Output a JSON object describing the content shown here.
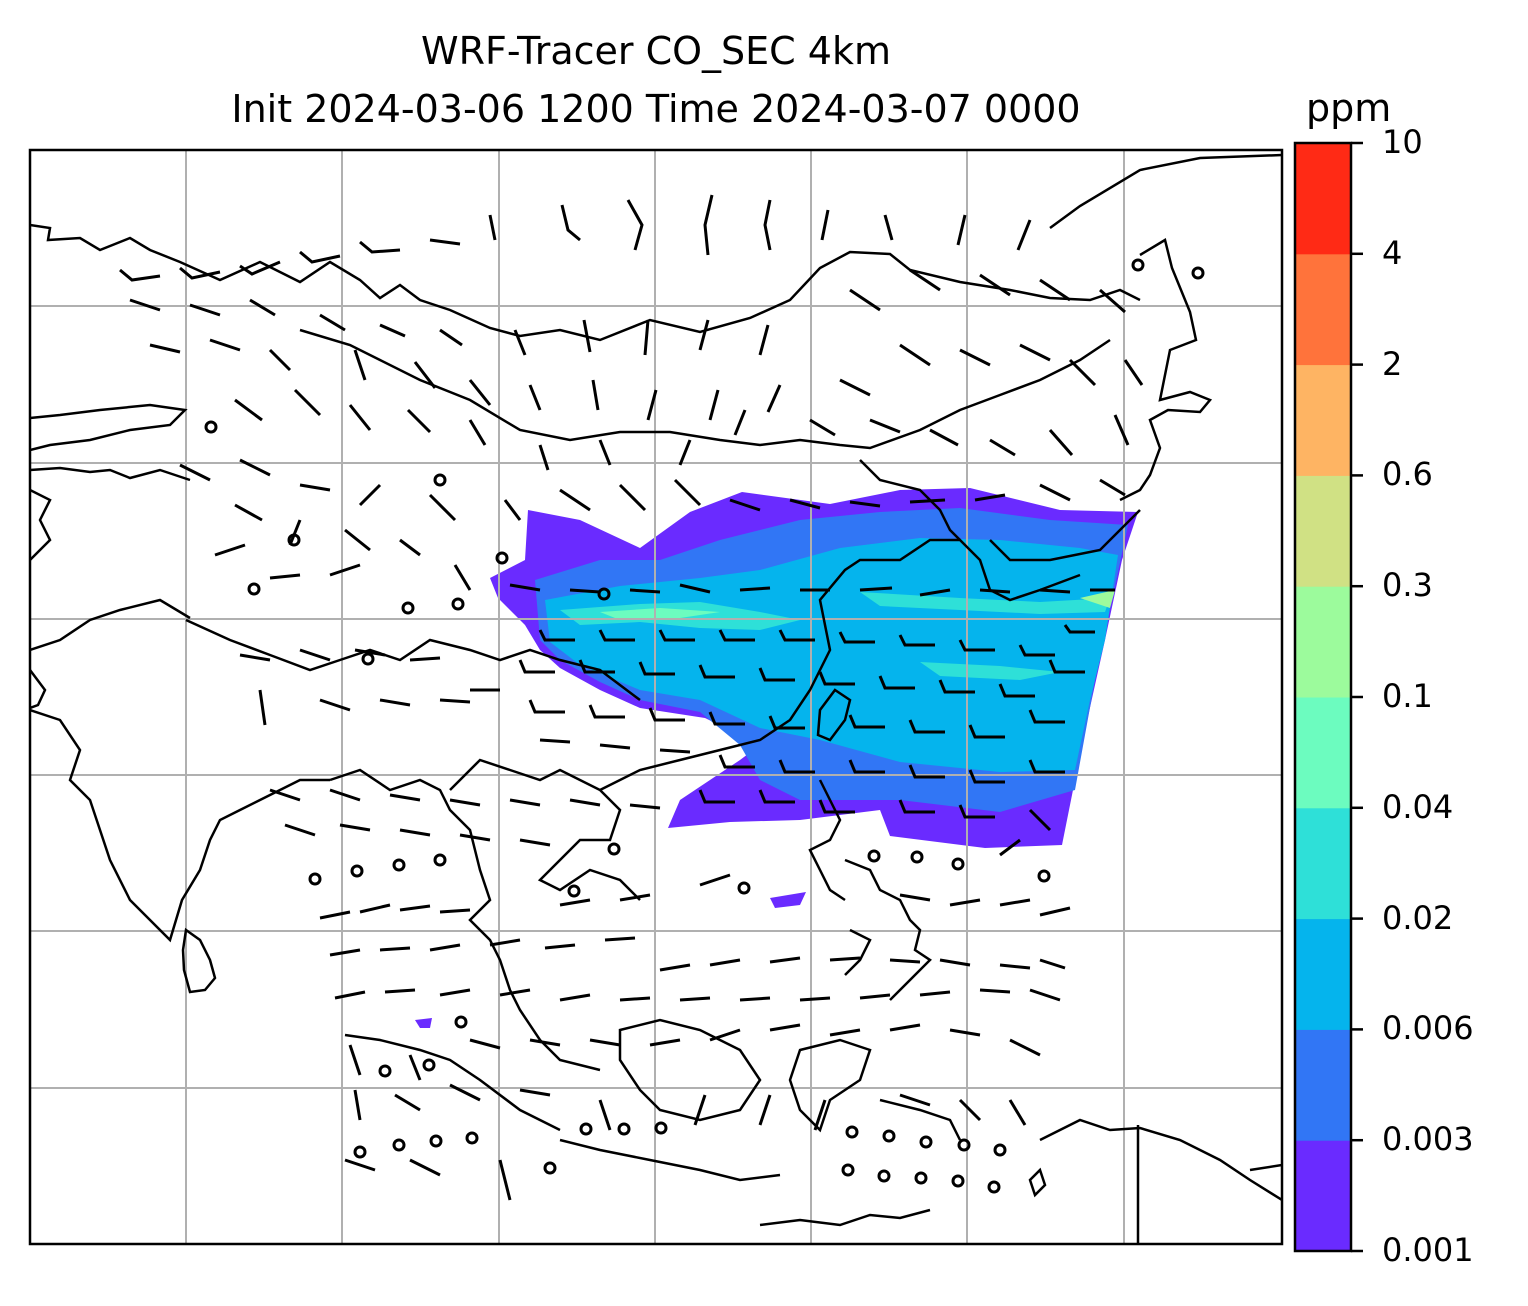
{
  "title_line1": "WRF-Tracer CO_SEC 4km",
  "title_line2": "Init 2024-03-06 1200 Time 2024-03-07 0000",
  "colorbar": {
    "unit": "ppm",
    "ticks": [
      "0.001",
      "0.003",
      "0.006",
      "0.02",
      "0.04",
      "0.1",
      "0.3",
      "0.6",
      "2",
      "4",
      "10"
    ],
    "colors": [
      "#6a2bff",
      "#3176f5",
      "#05b4ed",
      "#2ee0d8",
      "#6cfcbf",
      "#9cfb9c",
      "#d0e184",
      "#feb463",
      "#ff733b",
      "#ff2a15"
    ]
  }
}
